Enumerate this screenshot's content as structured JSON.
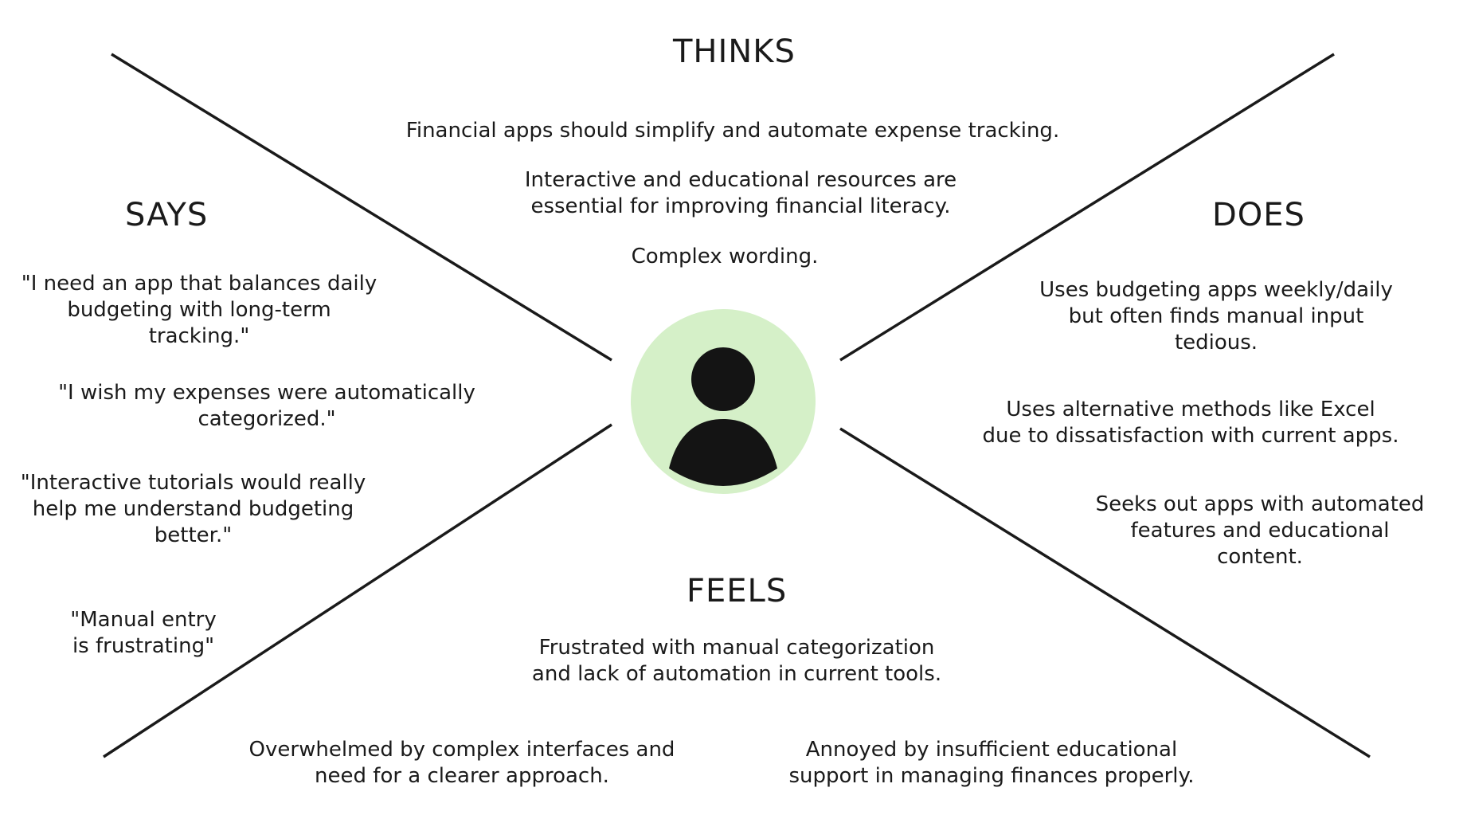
{
  "colors": {
    "line": "#1a1a1a",
    "avatar_bg": "#d5f0c8",
    "avatar_figure": "#141414",
    "text": "#1a1a1a"
  },
  "quadrants": {
    "thinks": {
      "title": "THINKS",
      "notes": [
        "Financial apps should simplify and automate expense tracking.",
        "Interactive and educational resources are\nessential for improving financial literacy.",
        "Complex wording."
      ]
    },
    "says": {
      "title": "SAYS",
      "notes": [
        "\"I need an app that balances daily\nbudgeting with long-term\ntracking.\"",
        "\"I wish my expenses were automatically\ncategorized.\"",
        "\"Interactive tutorials would really\nhelp me understand budgeting\nbetter.\"",
        "\"Manual entry\nis frustrating\""
      ]
    },
    "does": {
      "title": "DOES",
      "notes": [
        "Uses budgeting apps weekly/daily\nbut often finds manual input\ntedious.",
        "Uses alternative methods like Excel\ndue to dissatisfaction with current apps.",
        "Seeks out apps with automated\nfeatures and educational\ncontent."
      ]
    },
    "feels": {
      "title": "FEELS",
      "notes": [
        "Frustrated with manual categorization\nand lack of automation in current tools.",
        "Overwhelmed by complex interfaces and\nneed for a clearer approach.",
        "Annoyed by insufficient educational\nsupport in managing finances properly."
      ]
    }
  },
  "center": {
    "icon": "user-avatar-icon"
  }
}
